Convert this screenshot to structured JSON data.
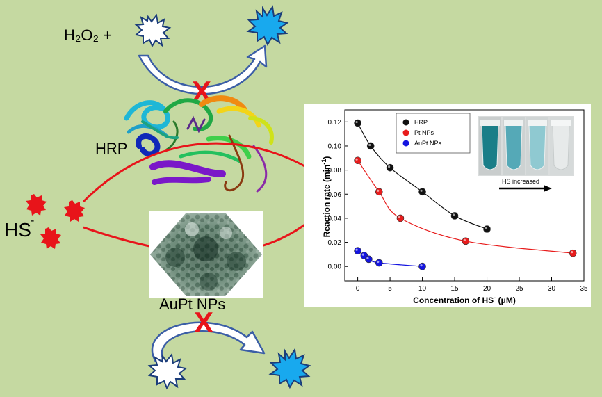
{
  "labels": {
    "h2o2_plus": "H₂O₂ +",
    "hrp": "HRP",
    "hs": "HS",
    "hs_sup": "-",
    "aupt_nps": "AuPt NPs",
    "inhibit_mark": "X",
    "inset_arrow_label": "HS increased"
  },
  "colors": {
    "background": "#c5d9a1",
    "red": "#e8141a",
    "star_blue": "#18a9ee",
    "arrow_outline": "#3b5ea6",
    "hrp_series": "#111111",
    "pt_series": "#e81c1c",
    "aupt_series": "#1414e0"
  },
  "chart_data": {
    "type": "scatter",
    "xlabel_main": "Concentration of HS",
    "xlabel_sup": "-",
    "xlabel_unit": " (μM)",
    "ylabel": "Reaction rate (min",
    "ylabel_sup": "-1",
    "ylabel_end": ")",
    "xlim": [
      -2,
      35
    ],
    "ylim": [
      -0.012,
      0.13
    ],
    "xticks": [
      0,
      5,
      10,
      15,
      20,
      25,
      30,
      35
    ],
    "yticks": [
      0.0,
      0.02,
      0.04,
      0.06,
      0.08,
      0.1,
      0.12
    ],
    "ytick_labels": [
      "0.00",
      "0.02",
      "0.04",
      "0.06",
      "0.08",
      "0.10",
      "0.12"
    ],
    "legend_position": "top",
    "series": [
      {
        "name": "HRP",
        "color": "#111111",
        "x": [
          0,
          2,
          5,
          10,
          15,
          20
        ],
        "y": [
          0.119,
          0.1,
          0.082,
          0.062,
          0.042,
          0.031
        ]
      },
      {
        "name": "Pt NPs",
        "color": "#e81c1c",
        "x": [
          0,
          3.3,
          6.6,
          16.7,
          33.3
        ],
        "y": [
          0.088,
          0.062,
          0.04,
          0.021,
          0.011
        ]
      },
      {
        "name": "AuPt NPs",
        "color": "#1414e0",
        "x": [
          0,
          1,
          1.7,
          3.3,
          10
        ],
        "y": [
          0.013,
          0.009,
          0.006,
          0.003,
          0.0
        ]
      }
    ]
  }
}
